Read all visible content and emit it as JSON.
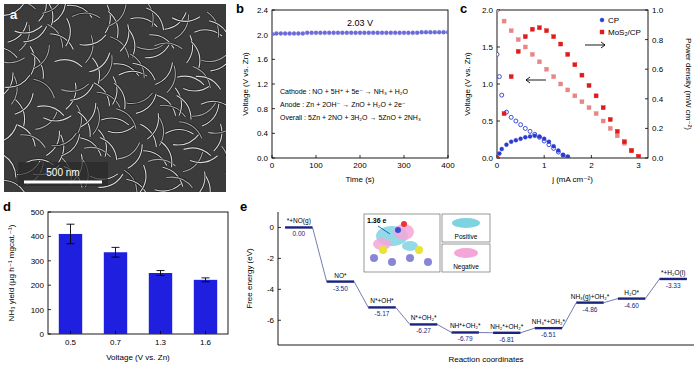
{
  "chart_data": [
    {
      "type": "image",
      "panel": "a",
      "annotation": "500 nm"
    },
    {
      "type": "line",
      "panel": "b",
      "x_label": "Time (s)",
      "y_label": "Voltage (V vs. Zn)",
      "xlim": [
        0,
        400
      ],
      "xticks": [
        0,
        100,
        200,
        300,
        400
      ],
      "ylim": [
        0,
        2.4
      ],
      "yticks": [
        {
          "value": 0,
          "label": "0.0"
        },
        {
          "value": 0.4,
          "label": "0.4"
        },
        {
          "value": 0.8,
          "label": "0.8"
        },
        {
          "value": 1.2,
          "label": "1.2"
        },
        {
          "value": 1.6,
          "label": "1.6"
        },
        {
          "value": 2.0,
          "label": "2.0"
        },
        {
          "value": 2.4,
          "label": "2.4"
        }
      ],
      "grid": false,
      "annotations": [
        "2.03 V",
        "Cathode : NO + 5H⁺ + 5e⁻ → NH₃ + H₂O",
        "Anode : Zn + 2OH⁻ → ZnO + H₂O + 2e⁻",
        "Overall : 5Zn + 2NO + 3H₂O → 5ZnO + 2NH₃"
      ],
      "series": [
        {
          "color": "#6b6bd8",
          "marker": "circle",
          "line_style": "none",
          "x": [
            0,
            10,
            20,
            30,
            40,
            50,
            60,
            70,
            80,
            90,
            100,
            110,
            120,
            130,
            140,
            150,
            160,
            170,
            180,
            190,
            200,
            210,
            220,
            230,
            240,
            250,
            260,
            270,
            280,
            290,
            300,
            310,
            320,
            330,
            340,
            350,
            360,
            370,
            380,
            390,
            400
          ],
          "values": [
            2.01,
            2.02,
            2.02,
            2.02,
            2.02,
            2.02,
            2.02,
            2.02,
            2.03,
            2.03,
            2.03,
            2.03,
            2.03,
            2.03,
            2.03,
            2.03,
            2.03,
            2.03,
            2.03,
            2.03,
            2.03,
            2.03,
            2.03,
            2.03,
            2.03,
            2.03,
            2.03,
            2.03,
            2.03,
            2.03,
            2.03,
            2.03,
            2.03,
            2.03,
            2.04,
            2.04,
            2.04,
            2.04,
            2.04,
            2.04,
            2.04
          ]
        }
      ]
    },
    {
      "type": "line",
      "panel": "c",
      "x_label": "j (mA cm⁻²)",
      "y_label": "Voltage (V vs. Zn)",
      "y2_label": "Power density (mW cm⁻²)",
      "xlim": [
        0,
        3.2
      ],
      "xticks": [
        0,
        1,
        2,
        3
      ],
      "ylim": [
        0,
        2.0
      ],
      "yticks": [
        {
          "value": 0,
          "label": "0.0"
        },
        {
          "value": 0.5,
          "label": "0.5"
        },
        {
          "value": 1.0,
          "label": "1.0"
        },
        {
          "value": 1.5,
          "label": "1.5"
        },
        {
          "value": 2.0,
          "label": "2.0"
        }
      ],
      "y2lim": [
        0,
        1.0
      ],
      "y2ticks": [
        {
          "value": 0,
          "label": "0.0"
        },
        {
          "value": 0.2,
          "label": "0.2"
        },
        {
          "value": 0.4,
          "label": "0.4"
        },
        {
          "value": 0.6,
          "label": "0.6"
        },
        {
          "value": 0.8,
          "label": "0.8"
        },
        {
          "value": 1.0,
          "label": "1.0"
        }
      ],
      "grid": false,
      "legend": "upper right",
      "series": [
        {
          "name": "CP",
          "color": "#2a3bd1",
          "marker": "circle_open",
          "line_style": "none",
          "x": [
            0,
            0.05,
            0.1,
            0.2,
            0.3,
            0.4,
            0.5,
            0.6,
            0.7,
            0.8,
            0.9,
            1.0,
            1.1,
            1.2,
            1.3,
            1.4,
            1.5
          ],
          "values": [
            1.4,
            1.1,
            0.85,
            0.62,
            0.55,
            0.5,
            0.45,
            0.4,
            0.36,
            0.32,
            0.28,
            0.23,
            0.18,
            0.13,
            0.08,
            0.04,
            0.01
          ]
        },
        {
          "name": "CP",
          "color": "#2a3bd1",
          "marker": "circle",
          "line_style": "none",
          "axis": "y2",
          "x": [
            0,
            0.05,
            0.1,
            0.2,
            0.3,
            0.4,
            0.5,
            0.6,
            0.7,
            0.8,
            0.9,
            1.0,
            1.1,
            1.2,
            1.3,
            1.4,
            1.5
          ],
          "values": [
            0,
            0.03,
            0.06,
            0.09,
            0.11,
            0.12,
            0.13,
            0.14,
            0.145,
            0.15,
            0.145,
            0.13,
            0.11,
            0.08,
            0.05,
            0.02,
            0.01
          ]
        },
        {
          "name": "MoS₂/CP",
          "color": "#e88585",
          "marker": "square",
          "line_style": "none",
          "x": [
            0,
            0.15,
            0.3,
            0.45,
            0.6,
            0.75,
            0.9,
            1.05,
            1.2,
            1.35,
            1.5,
            1.65,
            1.8,
            1.95,
            2.1,
            2.25,
            2.4,
            2.55,
            2.7,
            2.85,
            3.0
          ],
          "values": [
            2.0,
            1.85,
            1.72,
            1.6,
            1.5,
            1.4,
            1.3,
            1.2,
            1.1,
            1.0,
            0.92,
            0.84,
            0.76,
            0.68,
            0.6,
            0.5,
            0.4,
            0.3,
            0.2,
            0.1,
            0.02
          ]
        },
        {
          "name": "MoS₂/CP",
          "color": "#e01b1b",
          "marker": "square",
          "line_style": "none",
          "axis": "y2",
          "x": [
            0,
            0.15,
            0.3,
            0.45,
            0.6,
            0.75,
            0.9,
            1.05,
            1.2,
            1.35,
            1.5,
            1.65,
            1.8,
            1.95,
            2.1,
            2.25,
            2.4,
            2.55,
            2.7,
            2.85,
            3.0
          ],
          "values": [
            0,
            0.3,
            0.55,
            0.72,
            0.82,
            0.87,
            0.88,
            0.86,
            0.82,
            0.77,
            0.7,
            0.63,
            0.56,
            0.49,
            0.42,
            0.34,
            0.26,
            0.18,
            0.11,
            0.05,
            0.01
          ]
        }
      ]
    },
    {
      "type": "bar",
      "panel": "d",
      "x_label": "Voltage (V vs. Zn)",
      "y_label": "NH₃ yield (μg h⁻¹ mgcat.⁻¹)",
      "categories": [
        "0.5",
        "0.7",
        "1.3",
        "1.6"
      ],
      "values": [
        410,
        335,
        250,
        222
      ],
      "errors": [
        40,
        20,
        10,
        8
      ],
      "color": "#1f1fe0",
      "ylim": [
        0,
        500
      ],
      "yticks": [
        0,
        100,
        200,
        300,
        400,
        500
      ],
      "grid": false
    },
    {
      "type": "energy_diagram",
      "panel": "e",
      "x_label": "Reaction coordinates",
      "y_label": "Free energy (eV)",
      "categories": [
        "*+NO(g)",
        "NO*",
        "N*+OH*",
        "N*+OH₂*",
        "NH*+OH₂*",
        "NH₂*+OH₂*",
        "NH₃*+OH₂*",
        "NH₃(g)+OH₂*",
        "H₂O*",
        "*+H₂O(l)"
      ],
      "values": [
        0.0,
        -3.5,
        -5.17,
        -6.27,
        -6.79,
        -6.81,
        -6.51,
        -4.86,
        -4.6,
        -3.33
      ],
      "value_labels": [
        "0.00",
        "-3.50",
        "-5.17",
        "-6.27",
        "-6.79",
        "-6.81",
        "-6.51",
        "-4.86",
        "-4.60",
        "-3.33"
      ],
      "data_labels": true,
      "tick_labels": "y",
      "color": "#1a237e",
      "ylim": [
        -7.6,
        1.0
      ],
      "yticks": [
        0,
        -2,
        -4,
        -6
      ],
      "grid": false,
      "annotations": [
        "1.36 e",
        "Positive",
        "Negative"
      ]
    }
  ]
}
